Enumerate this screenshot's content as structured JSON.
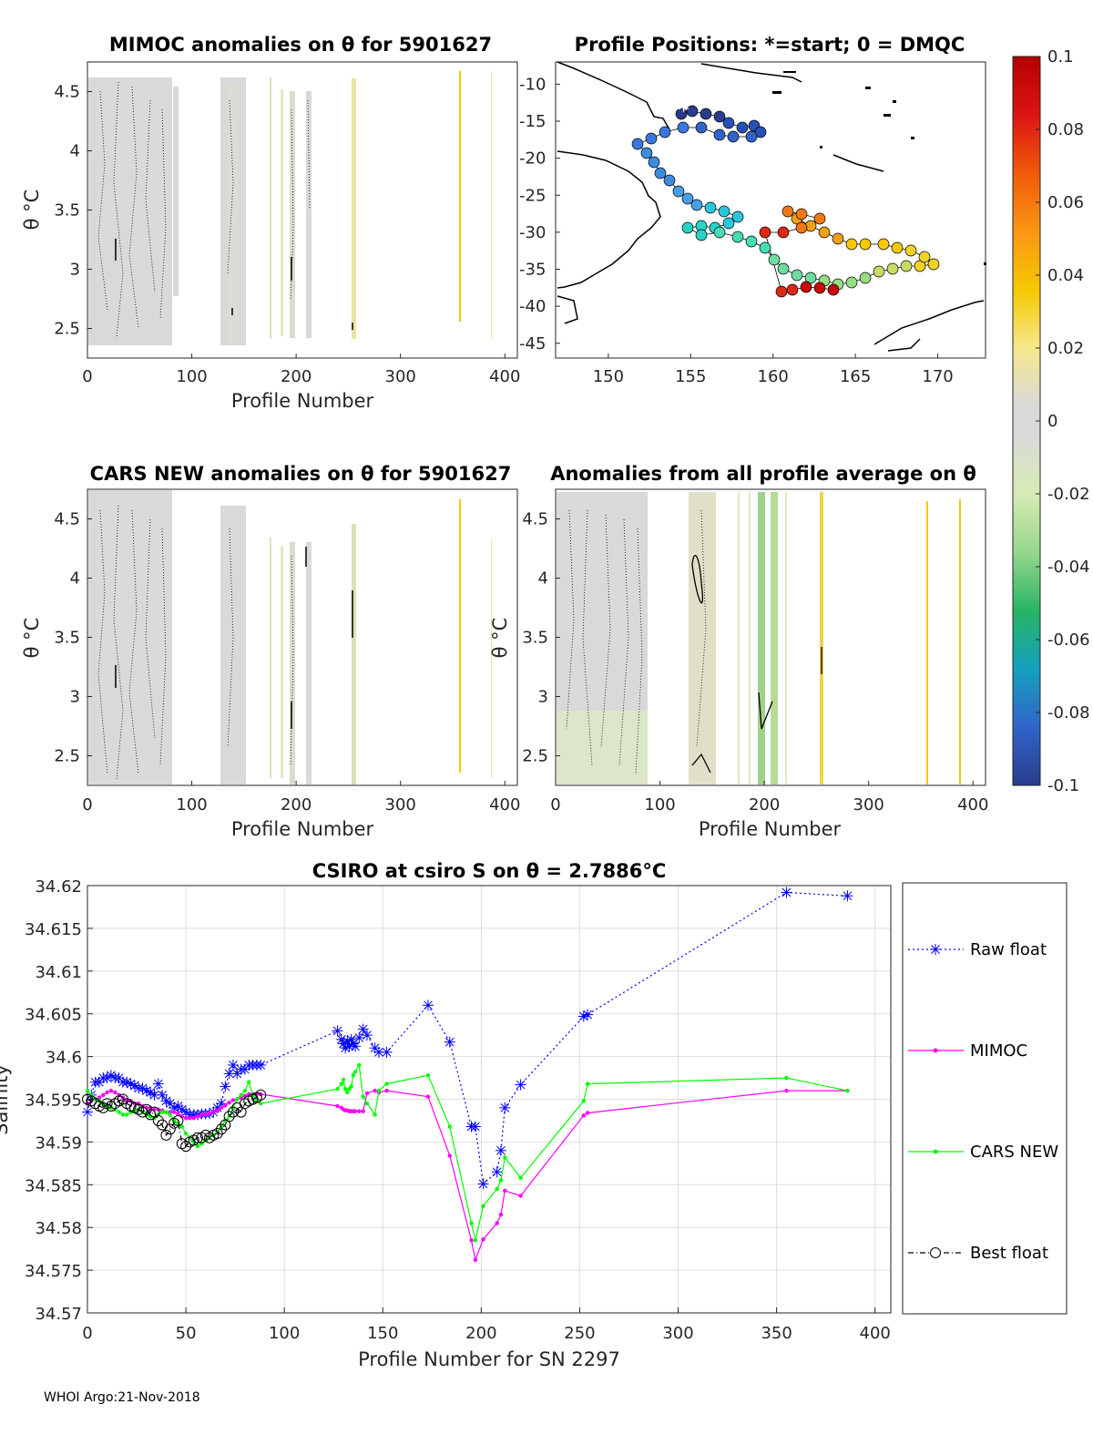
{
  "footer": "WHOI Argo:21-Nov-2018",
  "panels": {
    "mimoc": {
      "title": "MIMOC anomalies on θ  for 5901627",
      "xlabel": "Profile Number",
      "ylabel": "θ °C",
      "xticks": [
        "0",
        "100",
        "200",
        "300",
        "400"
      ],
      "yticks": [
        "2.5",
        "3",
        "3.5",
        "4",
        "4.5"
      ]
    },
    "map": {
      "title": "Profile Positions: *=start; 0 = DMQC",
      "xticks": [
        "150",
        "155",
        "160",
        "165",
        "170"
      ],
      "yticks": [
        "-10",
        "-15",
        "-20",
        "-25",
        "-30",
        "-35",
        "-40",
        "-45"
      ]
    },
    "cars": {
      "title": "CARS NEW anomalies on θ for 5901627",
      "xlabel": "Profile Number",
      "ylabel": "θ °C",
      "xticks": [
        "0",
        "100",
        "200",
        "300",
        "400"
      ],
      "yticks": [
        "2.5",
        "3",
        "3.5",
        "4",
        "4.5"
      ]
    },
    "avg": {
      "title": "Anomalies from all profile average on θ",
      "xlabel": "Profile Number",
      "ylabel": "θ °C",
      "xticks": [
        "0",
        "100",
        "200",
        "300",
        "400"
      ],
      "yticks": [
        "2.5",
        "3",
        "3.5",
        "4",
        "4.5"
      ]
    },
    "colorbar": {
      "ticks": [
        "0.1",
        "0.08",
        "0.06",
        "0.04",
        "0.02",
        "0",
        "-0.02",
        "-0.04",
        "-0.06",
        "-0.08",
        "-0.1"
      ]
    }
  },
  "chart_data": [
    {
      "type": "line",
      "title": "CSIRO at csiro S on θ = 2.7886°C",
      "xlabel": "Profile Number for SN 2297",
      "ylabel": "Salinity",
      "xlim": [
        0,
        400
      ],
      "ylim": [
        34.57,
        34.62
      ],
      "xticks": [
        "0",
        "50",
        "100",
        "150",
        "200",
        "250",
        "300",
        "350",
        "400"
      ],
      "yticks": [
        "34.57",
        "34.575",
        "34.58",
        "34.585",
        "34.59",
        "34.595",
        "34.6",
        "34.605",
        "34.61",
        "34.615",
        "34.62"
      ],
      "grid": true,
      "legend_position": "right",
      "series": [
        {
          "name": "Raw float",
          "color": "#0000ff",
          "marker": "star",
          "line": "dotted",
          "x": [
            0,
            2,
            4,
            6,
            8,
            10,
            12,
            14,
            16,
            18,
            20,
            22,
            24,
            26,
            28,
            30,
            32,
            34,
            36,
            38,
            40,
            42,
            44,
            46,
            48,
            50,
            52,
            54,
            56,
            58,
            60,
            62,
            64,
            66,
            68,
            70,
            72,
            74,
            76,
            78,
            80,
            82,
            84,
            86,
            88,
            127,
            129,
            130,
            131,
            132,
            133,
            134,
            135,
            136,
            138,
            140,
            142,
            146,
            148,
            152,
            173,
            184,
            195,
            197,
            201,
            208,
            210,
            212,
            220,
            252,
            254,
            355,
            386
          ],
          "y": [
            34.5935,
            34.5955,
            34.597,
            34.597,
            34.5975,
            34.5975,
            34.5978,
            34.5975,
            34.5975,
            34.597,
            34.597,
            34.5968,
            34.5966,
            34.5963,
            34.5963,
            34.596,
            34.5958,
            34.5955,
            34.5968,
            34.5955,
            34.5948,
            34.5945,
            34.594,
            34.5942,
            34.5938,
            34.5935,
            34.5932,
            34.5932,
            34.5932,
            34.5933,
            34.5933,
            34.5933,
            34.5935,
            34.594,
            34.5945,
            34.5965,
            34.598,
            34.599,
            34.598,
            34.5985,
            34.5985,
            34.599,
            34.599,
            34.599,
            34.599,
            34.603,
            34.602,
            34.6015,
            34.601,
            34.6018,
            34.6012,
            34.602,
            34.6015,
            34.6012,
            34.6022,
            34.6032,
            34.6025,
            34.601,
            34.6005,
            34.6005,
            34.606,
            34.6017,
            34.5918,
            34.5918,
            34.5851,
            34.5865,
            34.589,
            34.594,
            34.5967,
            34.6047,
            34.6049,
            34.6192,
            34.6188
          ]
        },
        {
          "name": "MIMOC",
          "color": "#ff00ff",
          "marker": "dot",
          "line": "solid",
          "x": [
            0,
            2,
            4,
            6,
            8,
            10,
            12,
            14,
            16,
            18,
            20,
            22,
            24,
            26,
            28,
            30,
            32,
            34,
            36,
            38,
            40,
            42,
            44,
            46,
            48,
            50,
            52,
            54,
            56,
            58,
            60,
            62,
            64,
            66,
            68,
            70,
            72,
            74,
            76,
            78,
            80,
            82,
            84,
            86,
            88,
            127,
            129,
            130,
            131,
            132,
            133,
            134,
            135,
            136,
            138,
            140,
            142,
            146,
            148,
            152,
            173,
            184,
            195,
            197,
            201,
            208,
            210,
            212,
            220,
            252,
            254,
            355,
            386
          ],
          "y": [
            34.5945,
            34.5948,
            34.595,
            34.5952,
            34.5955,
            34.5958,
            34.596,
            34.5958,
            34.5955,
            34.5952,
            34.5948,
            34.5948,
            34.5945,
            34.5945,
            34.5942,
            34.594,
            34.594,
            34.5938,
            34.5938,
            34.5937,
            34.5935,
            34.5935,
            34.5935,
            34.5933,
            34.593,
            34.5928,
            34.5928,
            34.5928,
            34.593,
            34.5932,
            34.5932,
            34.5934,
            34.5935,
            34.5937,
            34.594,
            34.5943,
            34.5946,
            34.5949,
            34.595,
            34.5952,
            34.5954,
            34.5956,
            34.5956,
            34.5956,
            34.5956,
            34.5942,
            34.594,
            34.5938,
            34.5937,
            34.5937,
            34.5936,
            34.5936,
            34.5936,
            34.5936,
            34.5936,
            34.5936,
            34.5957,
            34.596,
            34.5958,
            34.596,
            34.5953,
            34.5884,
            34.5785,
            34.5762,
            34.5786,
            34.5805,
            34.5815,
            34.5843,
            34.5837,
            34.5931,
            34.5934,
            34.596,
            34.596
          ]
        },
        {
          "name": "CARS NEW",
          "color": "#00ff00",
          "marker": "dot",
          "line": "solid",
          "x": [
            0,
            2,
            4,
            6,
            8,
            10,
            12,
            14,
            16,
            18,
            20,
            22,
            24,
            26,
            28,
            30,
            32,
            34,
            36,
            38,
            40,
            42,
            44,
            46,
            48,
            50,
            52,
            54,
            56,
            58,
            60,
            62,
            64,
            66,
            68,
            70,
            72,
            74,
            76,
            78,
            80,
            82,
            84,
            86,
            88,
            127,
            129,
            130,
            131,
            132,
            133,
            134,
            135,
            136,
            138,
            140,
            142,
            146,
            148,
            152,
            173,
            184,
            195,
            197,
            201,
            208,
            210,
            212,
            220,
            252,
            254,
            355,
            386
          ],
          "y": [
            34.596,
            34.5955,
            34.595,
            34.5948,
            34.5945,
            34.5942,
            34.594,
            34.5938,
            34.5935,
            34.5932,
            34.5932,
            34.5935,
            34.5937,
            34.5938,
            34.5935,
            34.5932,
            34.593,
            34.5928,
            34.5932,
            34.5935,
            34.5935,
            34.5932,
            34.5925,
            34.5922,
            34.5918,
            34.591,
            34.5905,
            34.59,
            34.5895,
            34.5898,
            34.5902,
            34.5905,
            34.5908,
            34.5912,
            34.5918,
            34.5925,
            34.593,
            34.594,
            34.595,
            34.5955,
            34.596,
            34.597,
            34.5955,
            34.5948,
            34.5945,
            34.5962,
            34.5968,
            34.5973,
            34.5962,
            34.5958,
            34.5962,
            34.5965,
            34.5978,
            34.5982,
            34.599,
            34.5953,
            34.5945,
            34.5932,
            34.596,
            34.5968,
            34.5978,
            34.5918,
            34.5805,
            34.5785,
            34.5825,
            34.5845,
            34.5855,
            34.5882,
            34.5858,
            34.5948,
            34.5968,
            34.5975,
            34.596
          ]
        },
        {
          "name": "Best float",
          "color": "#000000",
          "marker": "circle",
          "line": "dashdot",
          "x": [
            0,
            2,
            4,
            6,
            8,
            10,
            12,
            14,
            16,
            18,
            20,
            22,
            24,
            26,
            28,
            30,
            32,
            34,
            36,
            38,
            40,
            42,
            44,
            46,
            48,
            50,
            52,
            54,
            56,
            58,
            60,
            62,
            64,
            66,
            68,
            70,
            72,
            74,
            76,
            78,
            80,
            82,
            84,
            86,
            88
          ],
          "y": [
            34.595,
            34.5948,
            34.5945,
            34.5942,
            34.594,
            34.5945,
            34.5942,
            34.5945,
            34.5948,
            34.595,
            34.5945,
            34.5942,
            34.594,
            34.5938,
            34.5935,
            34.5938,
            34.5932,
            34.5935,
            34.5925,
            34.592,
            34.5908,
            34.5915,
            34.5922,
            34.5925,
            34.5898,
            34.5895,
            34.59,
            34.5902,
            34.5905,
            34.5905,
            34.5908,
            34.5905,
            34.5908,
            34.591,
            34.5915,
            34.592,
            34.593,
            34.5935,
            34.594,
            34.5935,
            34.5945,
            34.5948,
            34.595,
            34.5952,
            34.5955
          ]
        }
      ]
    }
  ]
}
